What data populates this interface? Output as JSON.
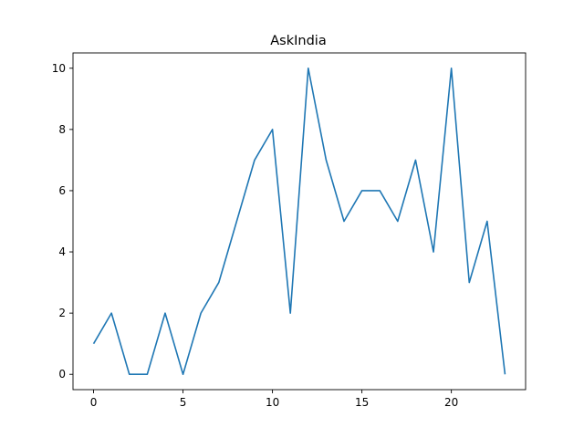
{
  "chart_data": {
    "type": "line",
    "title": "AskIndia",
    "xlabel": "",
    "ylabel": "",
    "x": [
      0,
      1,
      2,
      3,
      4,
      5,
      6,
      7,
      8,
      9,
      10,
      11,
      12,
      13,
      14,
      15,
      16,
      17,
      18,
      19,
      20,
      21,
      22,
      23
    ],
    "series": [
      {
        "values": [
          1,
          2,
          0,
          0,
          2,
          0,
          2,
          3,
          5,
          7,
          8,
          2,
          10,
          7,
          5,
          6,
          6,
          5,
          7,
          4,
          10,
          3,
          5,
          0
        ],
        "color": "#1f77b4"
      }
    ],
    "xlim": [
      -1.15,
      24.15
    ],
    "ylim": [
      -0.5,
      10.5
    ],
    "xticks": [
      0,
      5,
      10,
      15,
      20
    ],
    "yticks": [
      0,
      2,
      4,
      6,
      8,
      10
    ],
    "grid": false,
    "legend": "none"
  }
}
